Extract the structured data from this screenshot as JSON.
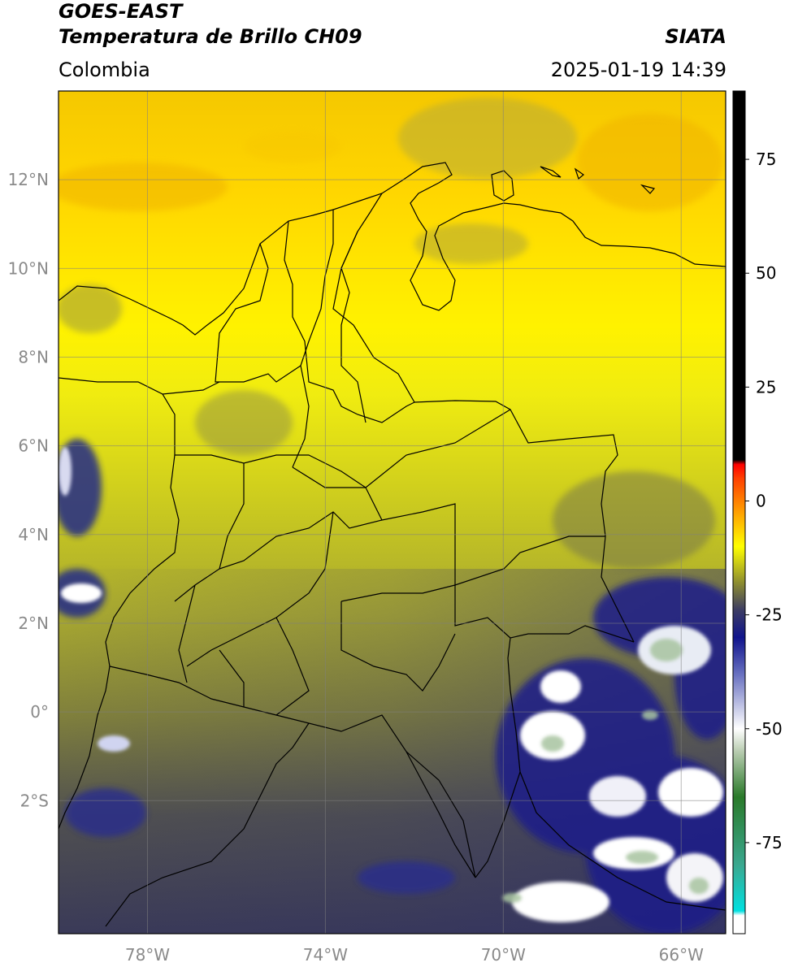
{
  "header": {
    "satellite": "GOES-EAST",
    "product": "Temperatura de Brillo CH09",
    "organization": "SIATA",
    "region": "Colombia",
    "datetime": "2025-01-19 14:39"
  },
  "map": {
    "extent": {
      "lon_min": -80,
      "lon_max": -65,
      "lat_min": -5,
      "lat_max": 14
    },
    "lat_ticks": [
      {
        "value": 12,
        "label": "12°N"
      },
      {
        "value": 10,
        "label": "10°N"
      },
      {
        "value": 8,
        "label": "8°N"
      },
      {
        "value": 6,
        "label": "6°N"
      },
      {
        "value": 4,
        "label": "4°N"
      },
      {
        "value": 2,
        "label": "2°N"
      },
      {
        "value": 0,
        "label": "0°"
      },
      {
        "value": -2,
        "label": "2°S"
      }
    ],
    "lon_ticks": [
      {
        "value": -78,
        "label": "78°W"
      },
      {
        "value": -74,
        "label": "74°W"
      },
      {
        "value": -70,
        "label": "70°W"
      },
      {
        "value": -66,
        "label": "66°W"
      }
    ],
    "gridlines": true
  },
  "colorbar": {
    "range": [
      -95,
      90
    ],
    "ticks": [
      {
        "value": 75,
        "label": "75"
      },
      {
        "value": 50,
        "label": "50"
      },
      {
        "value": 25,
        "label": "25"
      },
      {
        "value": 0,
        "label": "0"
      },
      {
        "value": -25,
        "label": "-25"
      },
      {
        "value": -50,
        "label": "-50"
      },
      {
        "value": -75,
        "label": "-75"
      }
    ],
    "stops": [
      {
        "value": -95,
        "color": "#ffffff"
      },
      {
        "value": -91,
        "color": "#ffffff"
      },
      {
        "value": -90,
        "color": "#00e0e0"
      },
      {
        "value": -80,
        "color": "#3aa890"
      },
      {
        "value": -65,
        "color": "#2a7a2a"
      },
      {
        "value": -55,
        "color": "#b8ccb0"
      },
      {
        "value": -50,
        "color": "#ffffff"
      },
      {
        "value": -38,
        "color": "#6870c0"
      },
      {
        "value": -30,
        "color": "#10148c"
      },
      {
        "value": -24,
        "color": "#3c3c64"
      },
      {
        "value": -18,
        "color": "#8c8c30"
      },
      {
        "value": -10,
        "color": "#ffff00"
      },
      {
        "value": -5,
        "color": "#ffc000"
      },
      {
        "value": 5,
        "color": "#ff4000"
      },
      {
        "value": 8,
        "color": "#ff0000"
      },
      {
        "value": 9,
        "color": "#000000"
      },
      {
        "value": 90,
        "color": "#000000"
      }
    ]
  }
}
